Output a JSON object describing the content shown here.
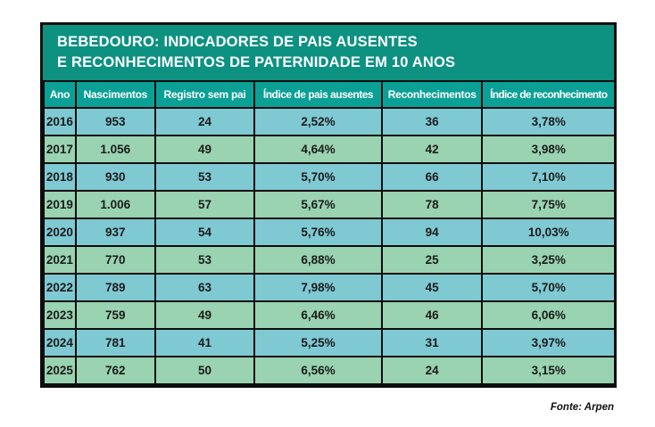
{
  "colors": {
    "title_band": "#0d9181",
    "header_row": "#0ba095",
    "row_blue": "#7fc9d3",
    "row_green": "#99d3b1",
    "border": "#0d0d0d",
    "title_text": "#ffffff",
    "cell_text": "#1b1b1b"
  },
  "chart_data": {
    "type": "table",
    "title": "BEBEDOURO: INDICADORES DE PAIS AUSENTES E RECONHECIMENTOS DE PATERNIDADE EM 10 ANOS",
    "title_lines": [
      "BEBEDOURO: INDICADORES DE PAIS AUSENTES",
      "E RECONHECIMENTOS DE PATERNIDADE EM 10 ANOS"
    ],
    "columns": [
      "Ano",
      "Nascimentos",
      "Registro sem pai",
      "Índice de pais ausentes",
      "Reconhecimentos",
      "Índice de reconhecimento"
    ],
    "rows": [
      [
        "2016",
        "953",
        "24",
        "2,52%",
        "36",
        "3,78%"
      ],
      [
        "2017",
        "1.056",
        "49",
        "4,64%",
        "42",
        "3,98%"
      ],
      [
        "2018",
        "930",
        "53",
        "5,70%",
        "66",
        "7,10%"
      ],
      [
        "2019",
        "1.006",
        "57",
        "5,67%",
        "78",
        "7,75%"
      ],
      [
        "2020",
        "937",
        "54",
        "5,76%",
        "94",
        "10,03%"
      ],
      [
        "2021",
        "770",
        "53",
        "6,88%",
        "25",
        "3,25%"
      ],
      [
        "2022",
        "789",
        "63",
        "7,98%",
        "45",
        "5,70%"
      ],
      [
        "2023",
        "759",
        "49",
        "6,46%",
        "46",
        "6,06%"
      ],
      [
        "2024",
        "781",
        "41",
        "5,25%",
        "31",
        "3,97%"
      ],
      [
        "2025",
        "762",
        "50",
        "6,56%",
        "24",
        "3,15%"
      ]
    ],
    "source": "Fonte: Arpen"
  }
}
